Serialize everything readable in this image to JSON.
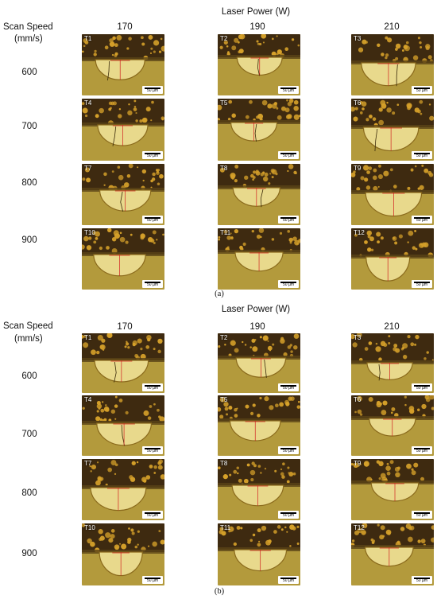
{
  "panel_a": {
    "header": "Laser Power (W)",
    "row_title_1": "Scan Speed",
    "row_title_2": "(mm/s)",
    "powers": [
      "170",
      "190",
      "210"
    ],
    "speeds": [
      "600",
      "700",
      "800",
      "900"
    ],
    "tiles": [
      "T1",
      "T2",
      "T3",
      "T4",
      "T5",
      "T6",
      "T7",
      "T8",
      "T9",
      "T10",
      "T11",
      "T12"
    ],
    "scale_label": "50 µm",
    "caption": "(a)"
  },
  "panel_b": {
    "header": "Laser Power (W)",
    "row_title_1": "Scan Speed",
    "row_title_2": "(mm/s)",
    "powers": [
      "170",
      "190",
      "210"
    ],
    "speeds": [
      "600",
      "700",
      "800",
      "900"
    ],
    "tiles": [
      "T1",
      "T2",
      "T3",
      "T4",
      "T5",
      "T6",
      "T7",
      "T8",
      "T9",
      "T10",
      "T11",
      "T12"
    ],
    "scale_label": "50 µm",
    "caption": "(b)"
  },
  "colors": {
    "substrate": "#b39a3c",
    "powder_dark": "#3e2a10",
    "powder_particle": "#d6a12a",
    "meltpool": "#e8d98c",
    "meltpool_edge": "#8a6a1c",
    "annotation": "#d02020"
  }
}
